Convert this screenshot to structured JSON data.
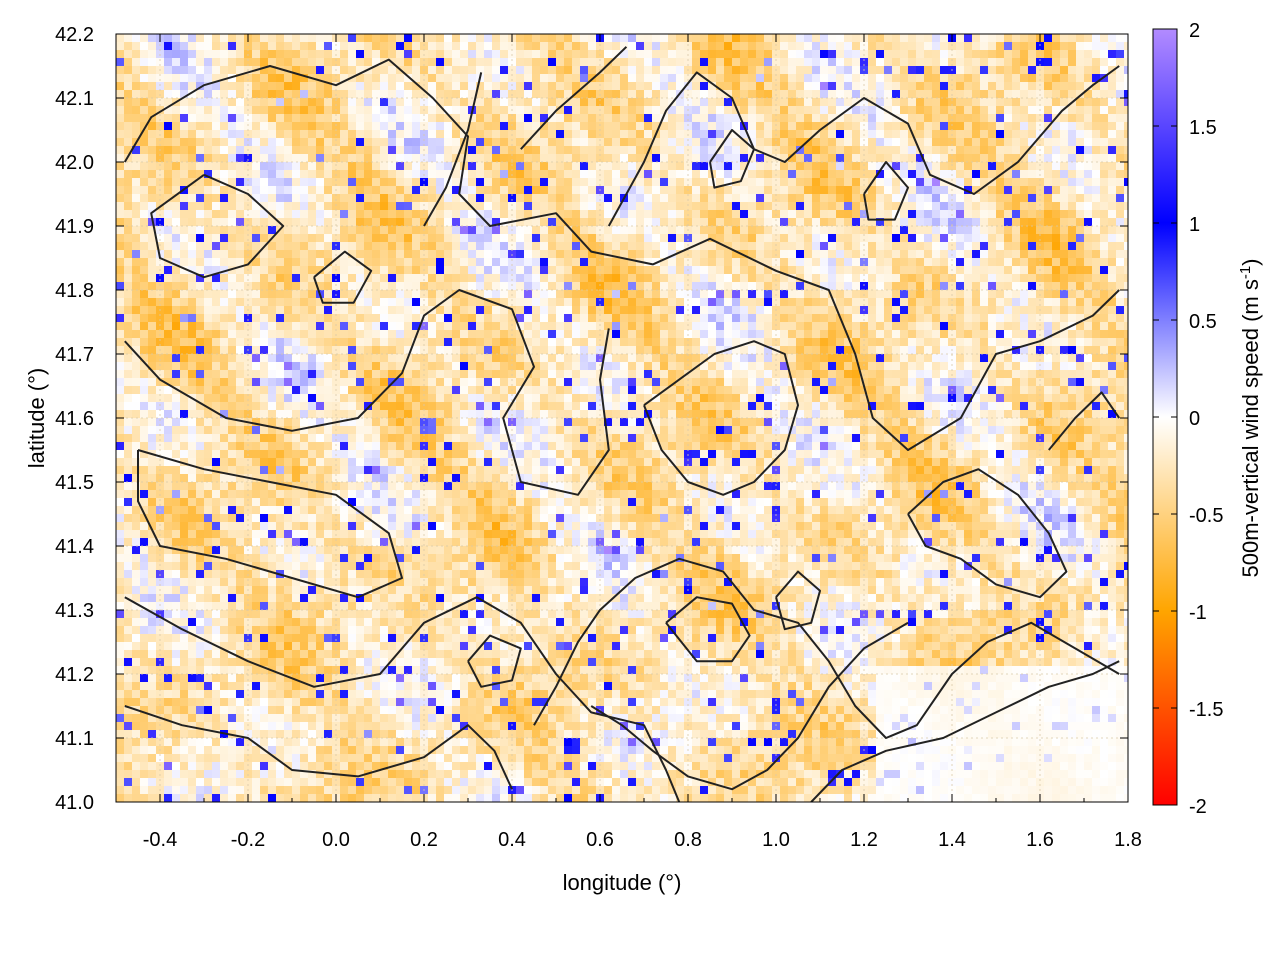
{
  "chart_data": {
    "type": "heatmap",
    "xlabel": "longitude (°)",
    "ylabel": "latitude (°)",
    "colorbar_label_main": "500m-vertical wind speed (m s",
    "colorbar_label_sup": "-1",
    "colorbar_label_end": ")",
    "xlim": [
      -0.5,
      1.8
    ],
    "ylim": [
      41.0,
      42.2
    ],
    "clim": [
      -2,
      2
    ],
    "x_ticks": [
      -0.4,
      -0.2,
      0.0,
      0.2,
      0.4,
      0.6,
      0.8,
      1.0,
      1.2,
      1.4,
      1.6,
      1.8
    ],
    "x_tick_labels": [
      "-0.4",
      "-0.2",
      "0.0",
      "0.2",
      "0.4",
      "0.6",
      "0.8",
      "1.0",
      "1.2",
      "1.4",
      "1.6",
      "1.8"
    ],
    "y_ticks": [
      41.0,
      41.1,
      41.2,
      41.3,
      41.4,
      41.5,
      41.6,
      41.7,
      41.8,
      41.9,
      42.0,
      42.1,
      42.2
    ],
    "y_tick_labels": [
      "41.0",
      "41.1",
      "41.2",
      "41.3",
      "41.4",
      "41.5",
      "41.6",
      "41.7",
      "41.8",
      "41.9",
      "42.0",
      "42.1",
      "42.2"
    ],
    "colorbar_ticks": [
      2,
      1.5,
      1,
      0.5,
      0,
      -0.5,
      -1,
      -1.5,
      -2
    ],
    "colorbar_tick_labels": [
      "2",
      "1.5",
      "1",
      "0.5",
      "0",
      "-0.5",
      "-1",
      "-1.5",
      "-2"
    ],
    "colormap": [
      {
        "value": -2,
        "color": "#ff0000"
      },
      {
        "value": -1,
        "color": "#ffa500"
      },
      {
        "value": 0,
        "color": "#ffffff"
      },
      {
        "value": 1,
        "color": "#0000ff"
      },
      {
        "value": 2,
        "color": "#b28bff"
      }
    ],
    "grid": true,
    "contour_color": "#222222",
    "contours": [
      [
        [
          -0.48,
          42.0
        ],
        [
          -0.42,
          42.07
        ],
        [
          -0.3,
          42.12
        ],
        [
          -0.15,
          42.15
        ],
        [
          0.0,
          42.12
        ],
        [
          0.12,
          42.16
        ],
        [
          0.22,
          42.1
        ],
        [
          0.3,
          42.04
        ],
        [
          0.28,
          41.95
        ],
        [
          0.35,
          41.9
        ],
        [
          0.5,
          41.92
        ],
        [
          0.58,
          41.86
        ],
        [
          0.72,
          41.84
        ],
        [
          0.85,
          41.88
        ],
        [
          1.0,
          41.83
        ],
        [
          1.12,
          41.8
        ],
        [
          1.18,
          41.7
        ],
        [
          1.22,
          41.6
        ],
        [
          1.3,
          41.55
        ],
        [
          1.42,
          41.6
        ],
        [
          1.5,
          41.7
        ],
        [
          1.6,
          41.72
        ],
        [
          1.72,
          41.76
        ],
        [
          1.78,
          41.8
        ]
      ],
      [
        [
          -0.3,
          41.98
        ],
        [
          -0.2,
          41.95
        ],
        [
          -0.12,
          41.9
        ],
        [
          -0.2,
          41.84
        ],
        [
          -0.3,
          41.82
        ],
        [
          -0.4,
          41.85
        ],
        [
          -0.42,
          41.92
        ],
        [
          -0.3,
          41.98
        ]
      ],
      [
        [
          -0.48,
          41.72
        ],
        [
          -0.4,
          41.66
        ],
        [
          -0.25,
          41.6
        ],
        [
          -0.1,
          41.58
        ],
        [
          0.05,
          41.6
        ],
        [
          0.15,
          41.67
        ],
        [
          0.2,
          41.76
        ],
        [
          0.28,
          41.8
        ],
        [
          0.4,
          41.77
        ],
        [
          0.45,
          41.68
        ],
        [
          0.38,
          41.6
        ],
        [
          0.42,
          41.5
        ],
        [
          0.55,
          41.48
        ],
        [
          0.62,
          41.55
        ],
        [
          0.6,
          41.66
        ],
        [
          0.62,
          41.74
        ]
      ],
      [
        [
          -0.45,
          41.55
        ],
        [
          -0.3,
          41.52
        ],
        [
          -0.15,
          41.5
        ],
        [
          0.0,
          41.48
        ],
        [
          0.12,
          41.42
        ],
        [
          0.15,
          41.35
        ],
        [
          0.05,
          41.32
        ],
        [
          -0.1,
          41.35
        ],
        [
          -0.25,
          41.38
        ],
        [
          -0.4,
          41.4
        ],
        [
          -0.45,
          41.47
        ],
        [
          -0.45,
          41.55
        ]
      ],
      [
        [
          -0.48,
          41.32
        ],
        [
          -0.35,
          41.27
        ],
        [
          -0.2,
          41.22
        ],
        [
          -0.05,
          41.18
        ],
        [
          0.1,
          41.2
        ],
        [
          0.2,
          41.28
        ],
        [
          0.32,
          41.32
        ],
        [
          0.42,
          41.28
        ],
        [
          0.5,
          41.2
        ],
        [
          0.58,
          41.14
        ],
        [
          0.7,
          41.12
        ],
        [
          0.75,
          41.05
        ],
        [
          0.78,
          41.0
        ]
      ],
      [
        [
          -0.48,
          41.15
        ],
        [
          -0.35,
          41.12
        ],
        [
          -0.2,
          41.1
        ],
        [
          -0.1,
          41.05
        ],
        [
          0.05,
          41.04
        ],
        [
          0.2,
          41.07
        ],
        [
          0.3,
          41.12
        ],
        [
          0.36,
          41.08
        ],
        [
          0.4,
          41.02
        ]
      ],
      [
        [
          0.45,
          41.12
        ],
        [
          0.5,
          41.18
        ],
        [
          0.55,
          41.25
        ],
        [
          0.6,
          41.3
        ],
        [
          0.68,
          41.35
        ],
        [
          0.78,
          41.38
        ],
        [
          0.88,
          41.36
        ],
        [
          0.95,
          41.3
        ],
        [
          1.05,
          41.28
        ],
        [
          1.12,
          41.22
        ],
        [
          1.18,
          41.15
        ],
        [
          1.25,
          41.1
        ],
        [
          1.32,
          41.12
        ],
        [
          1.4,
          41.2
        ],
        [
          1.48,
          41.25
        ],
        [
          1.58,
          41.28
        ],
        [
          1.68,
          41.24
        ],
        [
          1.78,
          41.2
        ]
      ],
      [
        [
          0.75,
          41.28
        ],
        [
          0.82,
          41.32
        ],
        [
          0.9,
          41.31
        ],
        [
          0.94,
          41.26
        ],
        [
          0.9,
          41.22
        ],
        [
          0.82,
          41.22
        ],
        [
          0.75,
          41.28
        ]
      ],
      [
        [
          1.0,
          41.32
        ],
        [
          1.05,
          41.36
        ],
        [
          1.1,
          41.33
        ],
        [
          1.08,
          41.28
        ],
        [
          1.02,
          41.27
        ],
        [
          1.0,
          41.32
        ]
      ],
      [
        [
          0.58,
          41.15
        ],
        [
          0.65,
          41.12
        ],
        [
          0.72,
          41.08
        ],
        [
          0.8,
          41.04
        ],
        [
          0.9,
          41.02
        ],
        [
          0.98,
          41.05
        ],
        [
          1.05,
          41.1
        ],
        [
          1.12,
          41.18
        ],
        [
          1.2,
          41.24
        ],
        [
          1.3,
          41.28
        ]
      ],
      [
        [
          1.08,
          41.0
        ],
        [
          1.15,
          41.05
        ],
        [
          1.25,
          41.08
        ],
        [
          1.38,
          41.1
        ],
        [
          1.5,
          41.14
        ],
        [
          1.62,
          41.18
        ],
        [
          1.72,
          41.2
        ],
        [
          1.78,
          41.22
        ]
      ],
      [
        [
          0.62,
          41.9
        ],
        [
          0.7,
          42.0
        ],
        [
          0.75,
          42.08
        ],
        [
          0.82,
          42.14
        ],
        [
          0.9,
          42.1
        ],
        [
          0.95,
          42.02
        ],
        [
          1.02,
          42.0
        ],
        [
          1.1,
          42.05
        ],
        [
          1.2,
          42.1
        ],
        [
          1.3,
          42.06
        ],
        [
          1.35,
          41.98
        ],
        [
          1.45,
          41.95
        ],
        [
          1.55,
          42.0
        ],
        [
          1.65,
          42.08
        ],
        [
          1.72,
          42.12
        ],
        [
          1.78,
          42.15
        ]
      ],
      [
        [
          0.85,
          42.0
        ],
        [
          0.9,
          42.05
        ],
        [
          0.95,
          42.02
        ],
        [
          0.92,
          41.97
        ],
        [
          0.86,
          41.96
        ],
        [
          0.85,
          42.0
        ]
      ],
      [
        [
          0.42,
          42.02
        ],
        [
          0.5,
          42.08
        ],
        [
          0.6,
          42.14
        ],
        [
          0.66,
          42.18
        ]
      ],
      [
        [
          0.7,
          41.62
        ],
        [
          0.78,
          41.66
        ],
        [
          0.86,
          41.7
        ],
        [
          0.95,
          41.72
        ],
        [
          1.02,
          41.7
        ],
        [
          1.05,
          41.62
        ],
        [
          1.02,
          41.55
        ],
        [
          0.95,
          41.5
        ],
        [
          0.88,
          41.48
        ],
        [
          0.8,
          41.5
        ],
        [
          0.74,
          41.55
        ],
        [
          0.7,
          41.62
        ]
      ],
      [
        [
          1.3,
          41.45
        ],
        [
          1.38,
          41.5
        ],
        [
          1.46,
          41.52
        ],
        [
          1.55,
          41.48
        ],
        [
          1.62,
          41.42
        ],
        [
          1.66,
          41.36
        ],
        [
          1.6,
          41.32
        ],
        [
          1.5,
          41.34
        ],
        [
          1.42,
          41.38
        ],
        [
          1.34,
          41.4
        ],
        [
          1.3,
          41.45
        ]
      ],
      [
        [
          1.62,
          41.55
        ],
        [
          1.68,
          41.6
        ],
        [
          1.74,
          41.64
        ],
        [
          1.78,
          41.6
        ]
      ],
      [
        [
          0.2,
          41.9
        ],
        [
          0.25,
          41.96
        ],
        [
          0.3,
          42.05
        ],
        [
          0.33,
          42.14
        ]
      ],
      [
        [
          -0.05,
          41.82
        ],
        [
          0.02,
          41.86
        ],
        [
          0.08,
          41.83
        ],
        [
          0.04,
          41.78
        ],
        [
          -0.03,
          41.78
        ],
        [
          -0.05,
          41.82
        ]
      ],
      [
        [
          0.3,
          41.22
        ],
        [
          0.35,
          41.26
        ],
        [
          0.42,
          41.24
        ],
        [
          0.4,
          41.19
        ],
        [
          0.33,
          41.18
        ],
        [
          0.3,
          41.22
        ]
      ],
      [
        [
          1.2,
          41.95
        ],
        [
          1.25,
          42.0
        ],
        [
          1.3,
          41.96
        ],
        [
          1.27,
          41.91
        ],
        [
          1.21,
          41.91
        ],
        [
          1.2,
          41.95
        ]
      ]
    ]
  }
}
